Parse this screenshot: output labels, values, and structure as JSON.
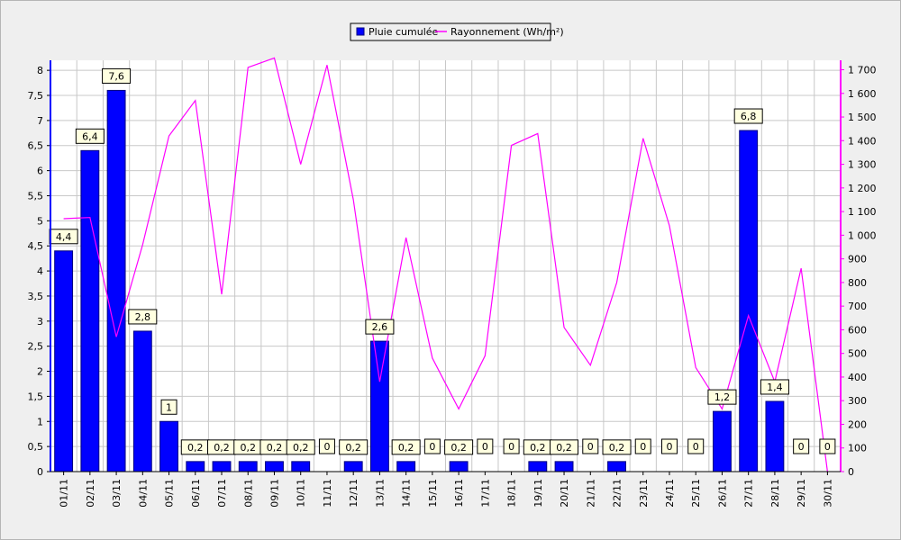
{
  "chart_data": {
    "type": "bar",
    "categories": [
      "01/11",
      "02/11",
      "03/11",
      "04/11",
      "05/11",
      "06/11",
      "07/11",
      "08/11",
      "09/11",
      "10/11",
      "11/11",
      "12/11",
      "13/11",
      "14/11",
      "15/11",
      "16/11",
      "17/11",
      "18/11",
      "19/11",
      "20/11",
      "21/11",
      "22/11",
      "23/11",
      "24/11",
      "25/11",
      "26/11",
      "27/11",
      "28/11",
      "29/11",
      "30/11"
    ],
    "series": [
      {
        "name": "Pluie cumulée",
        "type": "bar",
        "axis": "left",
        "color": "#0000ff",
        "values": [
          4.4,
          6.4,
          7.6,
          2.8,
          1,
          0.2,
          0.2,
          0.2,
          0.2,
          0.2,
          0,
          0.2,
          2.6,
          0.2,
          0,
          0.2,
          0,
          0,
          0.2,
          0.2,
          0,
          0.2,
          0,
          0,
          0,
          1.2,
          6.8,
          1.4,
          0,
          0
        ],
        "data_labels": [
          "4,4",
          "6,4",
          "7,6",
          "2,8",
          "1",
          "0,2",
          "0,2",
          "0,2",
          "0,2",
          "0,2",
          "0",
          "0,2",
          "2,6",
          "0,2",
          "0",
          "0,2",
          "0",
          "0",
          "0,2",
          "0,2",
          "0",
          "0,2",
          "0",
          "0",
          "0",
          "1,2",
          "6,8",
          "1,4",
          "0",
          "0"
        ]
      },
      {
        "name": "Rayonnement (Wh/m²)",
        "type": "line",
        "axis": "right",
        "color": "#ff00ff",
        "values": [
          1070,
          1075,
          570,
          960,
          1420,
          1570,
          750,
          1710,
          1750,
          1300,
          1720,
          1150,
          380,
          990,
          480,
          265,
          490,
          1380,
          1430,
          610,
          450,
          800,
          1410,
          1040,
          440,
          265,
          660,
          380,
          860,
          0
        ]
      }
    ],
    "y_left": {
      "ylim": [
        0,
        8.2
      ],
      "ticks": [
        "0",
        "0,5",
        "1",
        "1,5",
        "2",
        "2,5",
        "3",
        "3,5",
        "4",
        "4,5",
        "5",
        "5,5",
        "6",
        "6,5",
        "7",
        "7,5",
        "8"
      ]
    },
    "y_right": {
      "ylim": [
        0,
        1740
      ],
      "ticks": [
        "0",
        "100",
        "200",
        "300",
        "400",
        "500",
        "600",
        "700",
        "800",
        "900",
        "1 000",
        "1 100",
        "1 200",
        "1 300",
        "1 400",
        "1 500",
        "1 600",
        "1 700"
      ]
    },
    "grid": true,
    "legend_position": "top-center"
  }
}
